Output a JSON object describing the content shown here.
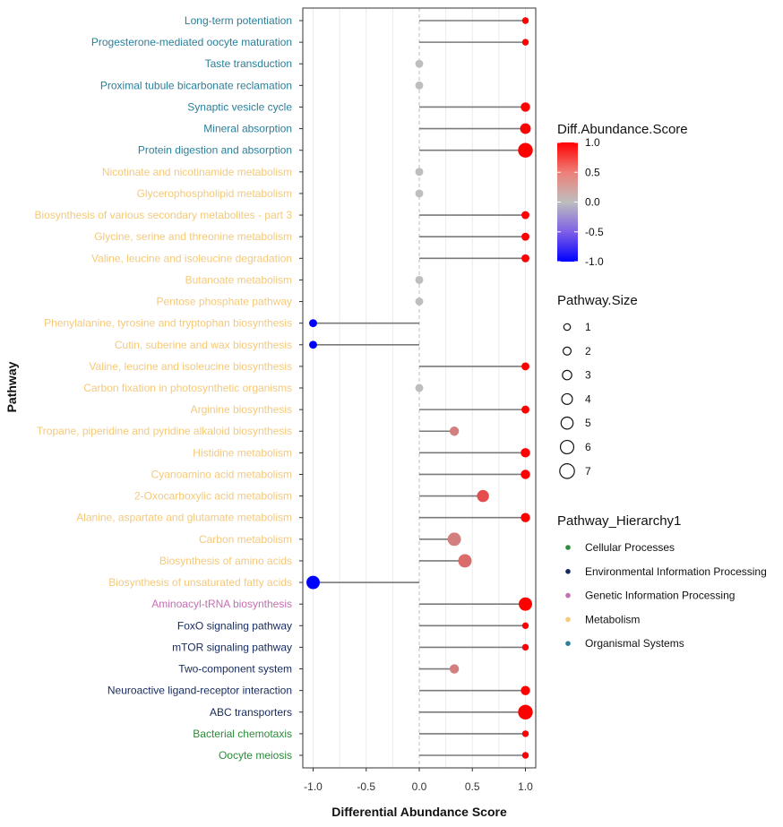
{
  "chart_data": {
    "type": "lollipop",
    "title": "",
    "xlabel": "Differential Abundance Score",
    "ylabel": "Pathway",
    "xlim": [
      -1.1,
      1.1
    ],
    "xticks": [
      "-1.0",
      "-0.5",
      "0.0",
      "0.5",
      "1.0"
    ],
    "xtick_values": [
      -1.0,
      -0.5,
      0.0,
      0.5,
      1.0
    ],
    "pathways": [
      {
        "name": "Long-term potentiation",
        "score": 1.0,
        "size": 1,
        "hierarchy": "Organismal Systems"
      },
      {
        "name": "Progesterone-mediated oocyte maturation",
        "score": 1.0,
        "size": 1,
        "hierarchy": "Organismal Systems"
      },
      {
        "name": "Taste transduction",
        "score": 0.0,
        "size": 2,
        "hierarchy": "Organismal Systems"
      },
      {
        "name": "Proximal tubule bicarbonate reclamation",
        "score": 0.0,
        "size": 2,
        "hierarchy": "Organismal Systems"
      },
      {
        "name": "Synaptic vesicle cycle",
        "score": 1.0,
        "size": 3,
        "hierarchy": "Organismal Systems"
      },
      {
        "name": "Mineral absorption",
        "score": 1.0,
        "size": 4,
        "hierarchy": "Organismal Systems"
      },
      {
        "name": "Protein digestion and absorption",
        "score": 1.0,
        "size": 7,
        "hierarchy": "Organismal Systems"
      },
      {
        "name": "Nicotinate and nicotinamide metabolism",
        "score": 0.0,
        "size": 2,
        "hierarchy": "Metabolism"
      },
      {
        "name": "Glycerophospholipid metabolism",
        "score": 0.0,
        "size": 2,
        "hierarchy": "Metabolism"
      },
      {
        "name": "Biosynthesis of various secondary metabolites - part 3",
        "score": 1.0,
        "size": 2,
        "hierarchy": "Metabolism"
      },
      {
        "name": "Glycine, serine and threonine metabolism",
        "score": 1.0,
        "size": 2,
        "hierarchy": "Metabolism"
      },
      {
        "name": "Valine, leucine and isoleucine degradation",
        "score": 1.0,
        "size": 2,
        "hierarchy": "Metabolism"
      },
      {
        "name": "Butanoate metabolism",
        "score": 0.0,
        "size": 2,
        "hierarchy": "Metabolism"
      },
      {
        "name": "Pentose phosphate pathway",
        "score": 0.0,
        "size": 2,
        "hierarchy": "Metabolism"
      },
      {
        "name": "Phenylalanine, tyrosine and tryptophan biosynthesis",
        "score": -1.0,
        "size": 2,
        "hierarchy": "Metabolism"
      },
      {
        "name": "Cutin, suberine and wax biosynthesis",
        "score": -1.0,
        "size": 2,
        "hierarchy": "Metabolism"
      },
      {
        "name": "Valine, leucine and isoleucine biosynthesis",
        "score": 1.0,
        "size": 2,
        "hierarchy": "Metabolism"
      },
      {
        "name": "Carbon fixation in photosynthetic organisms",
        "score": 0.0,
        "size": 2,
        "hierarchy": "Metabolism"
      },
      {
        "name": "Arginine biosynthesis",
        "score": 1.0,
        "size": 2,
        "hierarchy": "Metabolism"
      },
      {
        "name": "Tropane, piperidine and pyridine alkaloid biosynthesis",
        "score": 0.33,
        "size": 3,
        "hierarchy": "Metabolism"
      },
      {
        "name": "Histidine metabolism",
        "score": 1.0,
        "size": 3,
        "hierarchy": "Metabolism"
      },
      {
        "name": "Cyanoamino acid metabolism",
        "score": 1.0,
        "size": 3,
        "hierarchy": "Metabolism"
      },
      {
        "name": "2-Oxocarboxylic acid metabolism",
        "score": 0.6,
        "size": 5,
        "hierarchy": "Metabolism"
      },
      {
        "name": "Alanine, aspartate and glutamate metabolism",
        "score": 1.0,
        "size": 3,
        "hierarchy": "Metabolism"
      },
      {
        "name": "Carbon metabolism",
        "score": 0.33,
        "size": 6,
        "hierarchy": "Metabolism"
      },
      {
        "name": "Biosynthesis of amino acids",
        "score": 0.43,
        "size": 6,
        "hierarchy": "Metabolism"
      },
      {
        "name": "Biosynthesis of unsaturated fatty acids",
        "score": -1.0,
        "size": 6,
        "hierarchy": "Metabolism"
      },
      {
        "name": "Aminoacyl-tRNA biosynthesis",
        "score": 1.0,
        "size": 6,
        "hierarchy": "Genetic Information Processing"
      },
      {
        "name": "FoxO signaling pathway",
        "score": 1.0,
        "size": 1,
        "hierarchy": "Environmental Information Processing"
      },
      {
        "name": "mTOR signaling pathway",
        "score": 1.0,
        "size": 1,
        "hierarchy": "Environmental Information Processing"
      },
      {
        "name": "Two-component system",
        "score": 0.33,
        "size": 3,
        "hierarchy": "Environmental Information Processing"
      },
      {
        "name": "Neuroactive ligand-receptor interaction",
        "score": 1.0,
        "size": 3,
        "hierarchy": "Environmental Information Processing"
      },
      {
        "name": "ABC transporters",
        "score": 1.0,
        "size": 7,
        "hierarchy": "Environmental Information Processing"
      },
      {
        "name": "Bacterial chemotaxis",
        "score": 1.0,
        "size": 1,
        "hierarchy": "Cellular Processes"
      },
      {
        "name": "Oocyte meiosis",
        "score": 1.0,
        "size": 1,
        "hierarchy": "Cellular Processes"
      }
    ],
    "color_legend": {
      "title": "Diff.Abundance.Score",
      "ticks": [
        "1.0",
        "0.5",
        "0.0",
        "-0.5",
        "-1.0"
      ],
      "high_color": "#ff0000",
      "mid_color": "#bebebe",
      "low_color": "#0000ff"
    },
    "size_legend": {
      "title": "Pathway.Size",
      "values": [
        1,
        2,
        3,
        4,
        5,
        6,
        7
      ]
    },
    "hierarchy_legend": {
      "title": "Pathway_Hierarchy1",
      "items": [
        {
          "label": "Cellular Processes",
          "color": "#2e8b3a"
        },
        {
          "label": "Environmental Information Processing",
          "color": "#152a5c"
        },
        {
          "label": "Genetic Information Processing",
          "color": "#c46fb0"
        },
        {
          "label": "Metabolism",
          "color": "#f5c97a"
        },
        {
          "label": "Organismal Systems",
          "color": "#2a7f9a"
        }
      ]
    },
    "grid": true,
    "legend_position": "right"
  }
}
